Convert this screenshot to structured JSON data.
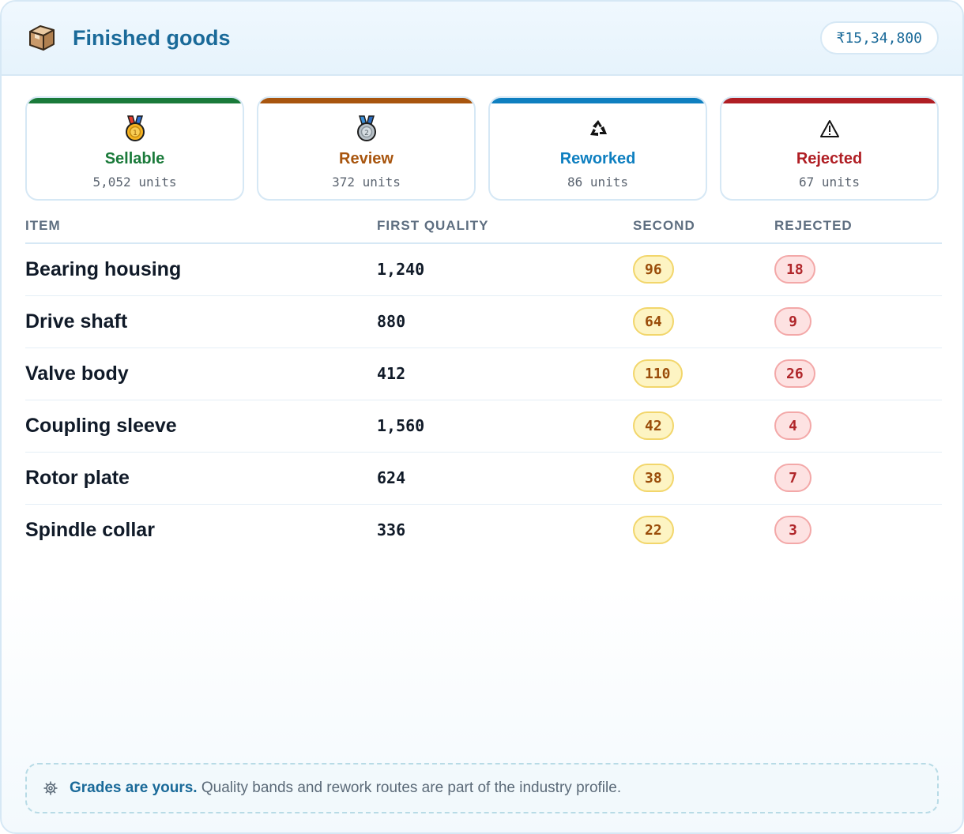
{
  "header": {
    "title": "Finished goods",
    "icon": "package-icon",
    "total": "₹15,34,800"
  },
  "grades": [
    {
      "label": "Sellable",
      "units": "5,052 units",
      "icon": "gold-medal-icon",
      "color": "#1a7a3a"
    },
    {
      "label": "Review",
      "units": "372 units",
      "icon": "silver-medal-icon",
      "color": "#a8550e"
    },
    {
      "label": "Reworked",
      "units": "86 units",
      "icon": "recycle-icon",
      "color": "#0e7fc0"
    },
    {
      "label": "Rejected",
      "units": "67 units",
      "icon": "warning-icon",
      "color": "#b01e24"
    }
  ],
  "table": {
    "columns": [
      "ITEM",
      "FIRST QUALITY",
      "SECOND",
      "REJECTED"
    ],
    "rows": [
      {
        "item": "Bearing housing",
        "first": "1,240",
        "second": "96",
        "rejected": "18"
      },
      {
        "item": "Drive shaft",
        "first": "880",
        "second": "64",
        "rejected": "9"
      },
      {
        "item": "Valve body",
        "first": "412",
        "second": "110",
        "rejected": "26"
      },
      {
        "item": "Coupling sleeve",
        "first": "1,560",
        "second": "42",
        "rejected": "4"
      },
      {
        "item": "Rotor plate",
        "first": "624",
        "second": "38",
        "rejected": "7"
      },
      {
        "item": "Spindle collar",
        "first": "336",
        "second": "22",
        "rejected": "3"
      }
    ]
  },
  "footer": {
    "icon": "gear-icon",
    "strong": "Grades are yours.",
    "text": " Quality bands and rework routes are part of the industry profile."
  }
}
